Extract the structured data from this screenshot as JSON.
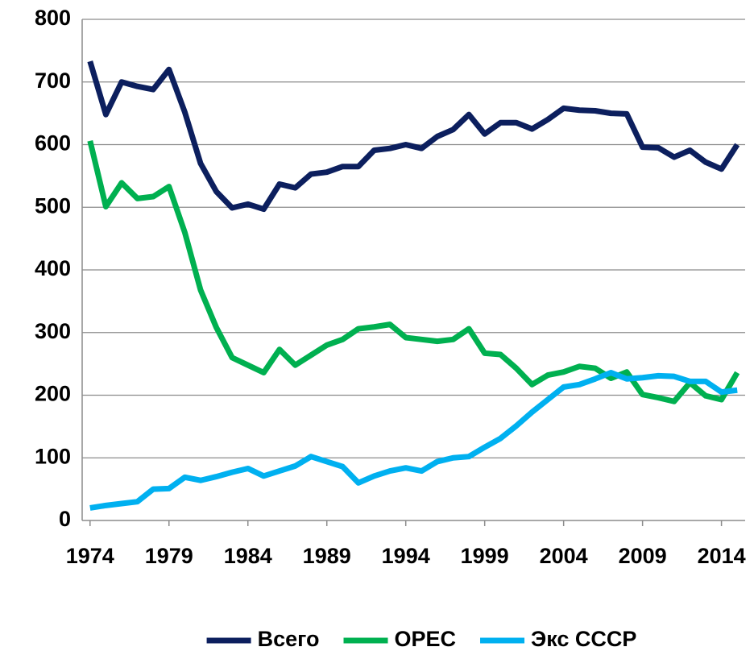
{
  "chart_data": {
    "type": "line",
    "x": [
      1974,
      1975,
      1976,
      1977,
      1978,
      1979,
      1980,
      1981,
      1982,
      1983,
      1984,
      1985,
      1986,
      1987,
      1988,
      1989,
      1990,
      1991,
      1992,
      1993,
      1994,
      1995,
      1996,
      1997,
      1998,
      1999,
      2000,
      2001,
      2002,
      2003,
      2004,
      2005,
      2006,
      2007,
      2008,
      2009,
      2010,
      2011,
      2012,
      2013,
      2014,
      2015
    ],
    "series": [
      {
        "name": "Всего",
        "color": "#0c1f5e",
        "values": [
          733,
          648,
          700,
          693,
          688,
          720,
          652,
          570,
          525,
          499,
          505,
          497,
          537,
          531,
          553,
          556,
          565,
          565,
          591,
          594,
          600,
          594,
          613,
          624,
          648,
          617,
          635,
          635,
          625,
          640,
          658,
          655,
          654,
          650,
          649,
          596,
          595,
          580,
          591,
          572,
          561,
          600
        ]
      },
      {
        "name": "OPEC",
        "color": "#00b050",
        "values": [
          606,
          501,
          539,
          514,
          517,
          533,
          460,
          368,
          308,
          260,
          248,
          236,
          273,
          248,
          264,
          280,
          289,
          306,
          309,
          313,
          292,
          289,
          286,
          289,
          306,
          267,
          265,
          243,
          217,
          232,
          237,
          246,
          243,
          227,
          237,
          201,
          196,
          190,
          220,
          199,
          193,
          236
        ]
      },
      {
        "name": "Экс СССР",
        "color": "#00b0f0",
        "values": [
          20,
          24,
          27,
          30,
          50,
          51,
          69,
          64,
          70,
          77,
          83,
          71,
          79,
          87,
          102,
          94,
          86,
          60,
          71,
          79,
          84,
          79,
          94,
          100,
          102,
          117,
          131,
          151,
          173,
          193,
          213,
          217,
          226,
          236,
          226,
          228,
          231,
          230,
          222,
          222,
          205,
          208
        ]
      }
    ],
    "xlim": [
      1973.5,
      2015.5
    ],
    "xticks": [
      1974,
      1979,
      1984,
      1989,
      1994,
      1999,
      2004,
      2009,
      2014
    ],
    "ylim": [
      0,
      800
    ],
    "yticks": [
      0,
      100,
      200,
      300,
      400,
      500,
      600,
      700,
      800
    ],
    "grid": true,
    "legend": "bottom"
  }
}
